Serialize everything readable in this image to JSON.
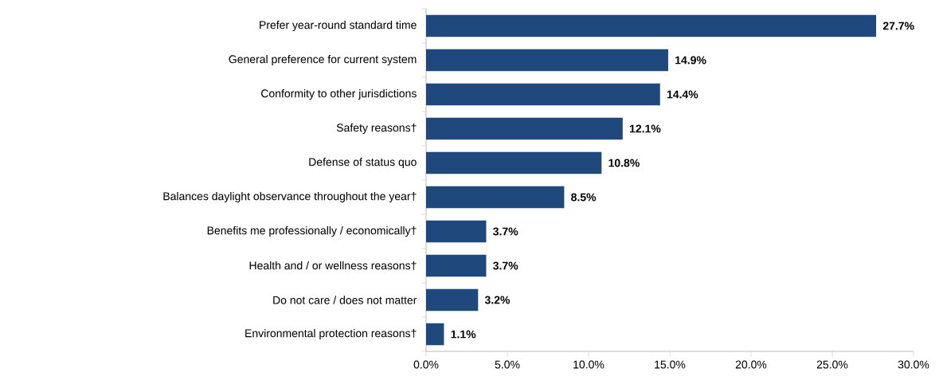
{
  "chart_data": {
    "type": "bar",
    "orientation": "horizontal",
    "color": "#1f497d",
    "categories": [
      "Prefer year-round standard time",
      "General preference for current system",
      "Conformity to other jurisdictions",
      "Safety reasons†",
      "Defense of status quo",
      "Balances daylight observance throughout the year†",
      "Benefits me professionally / economically†",
      "Health and / or wellness reasons†",
      "Do not care / does not matter",
      "Environmental protection reasons†"
    ],
    "values": [
      27.7,
      14.9,
      14.4,
      12.1,
      10.8,
      8.5,
      3.7,
      3.7,
      3.2,
      1.1
    ],
    "value_labels": [
      "27.7%",
      "14.9%",
      "14.4%",
      "12.1%",
      "10.8%",
      "8.5%",
      "3.7%",
      "3.7%",
      "3.2%",
      "1.1%"
    ],
    "xlim": [
      0,
      30
    ],
    "xticks": [
      {
        "value": 0,
        "label": "0.0%"
      },
      {
        "value": 5,
        "label": "5.0%"
      },
      {
        "value": 10,
        "label": "10.0%"
      },
      {
        "value": 15,
        "label": "15.0%"
      },
      {
        "value": 20,
        "label": "20.0%"
      },
      {
        "value": 25,
        "label": "25.0%"
      },
      {
        "value": 30,
        "label": "30.0%"
      }
    ]
  }
}
